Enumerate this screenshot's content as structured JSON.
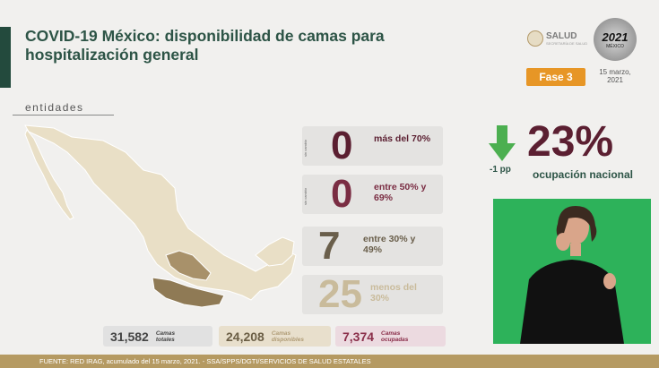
{
  "header": {
    "title": "COVID-19 México: disponibilidad de camas para hospitalización general",
    "logo_word": "SALUD",
    "logo_sub": "SECRETARÍA DE SALUD",
    "logo_year": "2021",
    "logo_country": "MÉXICO",
    "phase": "Fase 3",
    "date": "15 marzo, 2021"
  },
  "map": {
    "label": "entidades"
  },
  "ranges": [
    {
      "side": "sin cambio",
      "count": "0",
      "label": "más del 70%",
      "color": "#5b1f31"
    },
    {
      "side": "sin cambio",
      "count": "0",
      "label": "entre 50% y 69%",
      "color": "#7a2d43"
    },
    {
      "side": "",
      "count": "7",
      "label": "entre 30% y 49%",
      "color": "#6a5f4b"
    },
    {
      "side": "",
      "count": "25",
      "label": "menos del 30%",
      "color": "#c9bb9b"
    }
  ],
  "summary": [
    {
      "value": "31,582",
      "label": "Camas totales"
    },
    {
      "value": "24,208",
      "label": "Camas disponibles"
    },
    {
      "value": "7,374",
      "label": "Camas ocupadas"
    }
  ],
  "occupancy": {
    "percent": "23%",
    "label": "ocupación nacional",
    "delta": "-1 pp"
  },
  "footer": {
    "source": "FUENTE: RED IRAG, acumulado del 15 marzo, 2021.  -  SSA/SPPS/DGTI/SERVICIOS DE SALUD ESTATALES"
  },
  "colors": {
    "title": "#2d5446",
    "phase": "#e79626",
    "footer": "#b59a62",
    "range_high": "#5b1f31",
    "range_mid": "#7a2d43",
    "range_low": "#6a5f4b",
    "range_min": "#c9bb9b",
    "interpreter_bg": "#2db25a"
  }
}
